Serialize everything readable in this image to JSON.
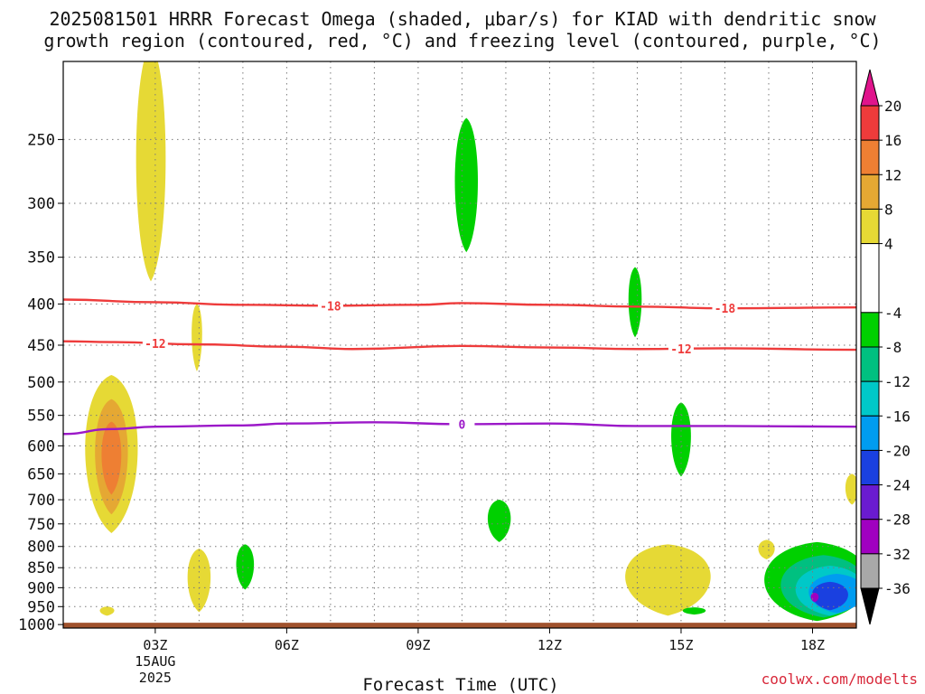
{
  "title": {
    "line1": "2025081501 HRRR Forecast Omega (shaded, μbar/s) for KIAD with dendritic snow",
    "line2": "growth region (contoured, red, °C) and freezing level (contoured, purple, °C)"
  },
  "watermark": "coolwx.com/modelts",
  "chart_data": {
    "type": "contour",
    "title": "2025081501 HRRR Forecast Omega (shaded, μbar/s) for KIAD with dendritic snow growth region (contoured, red, °C) and freezing level (contoured, purple, °C)",
    "xlabel": "Forecast Time (UTC)",
    "ylabel": "",
    "xlim_hours": [
      0.9,
      19.0
    ],
    "ylim_hpa": [
      1010,
      200
    ],
    "x_ticks": [
      {
        "hour": 3,
        "label": "03Z",
        "sub1": "15AUG",
        "sub2": "2025"
      },
      {
        "hour": 6,
        "label": "06Z"
      },
      {
        "hour": 9,
        "label": "09Z"
      },
      {
        "hour": 12,
        "label": "12Z"
      },
      {
        "hour": 15,
        "label": "15Z"
      },
      {
        "hour": 18,
        "label": "18Z"
      }
    ],
    "y_ticks": [
      250,
      300,
      350,
      400,
      450,
      500,
      550,
      600,
      650,
      700,
      750,
      800,
      850,
      900,
      950,
      1000
    ],
    "vertical_grid_hours": [
      3,
      4,
      5,
      6,
      7,
      8,
      9,
      10,
      11,
      12,
      13,
      14,
      15,
      16,
      17,
      18
    ],
    "grid": true,
    "ground_level_hpa": 1000,
    "ground_color": "#a0522d",
    "colorbar": {
      "levels": [
        20,
        16,
        12,
        8,
        4,
        -4,
        -8,
        -12,
        -16,
        -20,
        -24,
        -28,
        -32,
        -36
      ],
      "bins": [
        {
          "from": 20,
          "to": 16,
          "color": "#ee3b3b"
        },
        {
          "from": 16,
          "to": 12,
          "color": "#ee7f33"
        },
        {
          "from": 12,
          "to": 8,
          "color": "#e5a833"
        },
        {
          "from": 8,
          "to": 4,
          "color": "#e6d935"
        },
        {
          "from": 4,
          "to": -4,
          "color": "#ffffff"
        },
        {
          "from": -4,
          "to": -8,
          "color": "#00d000"
        },
        {
          "from": -8,
          "to": -12,
          "color": "#00c080"
        },
        {
          "from": -12,
          "to": -16,
          "color": "#00c8c8"
        },
        {
          "from": -16,
          "to": -20,
          "color": "#009cf0"
        },
        {
          "from": -20,
          "to": -24,
          "color": "#1a40e0"
        },
        {
          "from": -24,
          "to": -28,
          "color": "#6a1bd0"
        },
        {
          "from": -28,
          "to": -32,
          "color": "#a000c0"
        },
        {
          "from": -32,
          "to": -36,
          "color": "#a8a8a8"
        }
      ],
      "top_arrow_color": "#e0148c",
      "bottom_arrow_color": "#000000"
    },
    "contours": [
      {
        "name": "-18",
        "color": "#ee3b3b",
        "labels_at_hours": [
          7,
          16
        ],
        "points": [
          [
            0.9,
            395
          ],
          [
            3,
            398
          ],
          [
            5,
            401
          ],
          [
            7,
            402
          ],
          [
            9,
            401
          ],
          [
            10,
            399
          ],
          [
            12,
            401
          ],
          [
            14,
            403
          ],
          [
            16,
            405
          ],
          [
            19,
            404
          ]
        ]
      },
      {
        "name": "-12",
        "color": "#ee3b3b",
        "labels_at_hours": [
          3,
          15
        ],
        "points": [
          [
            0.9,
            445
          ],
          [
            2,
            446
          ],
          [
            4,
            449
          ],
          [
            6,
            452
          ],
          [
            7.5,
            455
          ],
          [
            10,
            451
          ],
          [
            12,
            453
          ],
          [
            14,
            455
          ],
          [
            16,
            454
          ],
          [
            19,
            456
          ]
        ]
      },
      {
        "name": "0",
        "color": "#9b18c8",
        "labels_at_hours": [
          10
        ],
        "points": [
          [
            0.9,
            580
          ],
          [
            2,
            572
          ],
          [
            3,
            568
          ],
          [
            5,
            566
          ],
          [
            6,
            563
          ],
          [
            8,
            561
          ],
          [
            10,
            564
          ],
          [
            12,
            563
          ],
          [
            14,
            567
          ],
          [
            16,
            567
          ],
          [
            19,
            568
          ]
        ]
      }
    ],
    "shaded_regions": [
      {
        "omega": "4 to 8",
        "color": "#e6d935",
        "center_hour": 2.9,
        "center_hpa": 295,
        "extent_hours": 0.45,
        "extent_hpa": [
          190,
          375
        ]
      },
      {
        "omega": "4 to 8",
        "color": "#e6d935",
        "center_hour": 3.95,
        "center_hpa": 435,
        "extent_hours": 0.16,
        "extent_hpa": [
          400,
          485
        ]
      },
      {
        "omega": "4 to 8",
        "color": "#e6d935",
        "center_hour": 2.0,
        "center_hpa": 630,
        "extent_hours": 0.8,
        "extent_hpa": [
          490,
          770
        ]
      },
      {
        "omega": "8 to 12",
        "color": "#e5a833",
        "center_hour": 2.0,
        "center_hpa": 625,
        "extent_hours": 0.5,
        "extent_hpa": [
          525,
          730
        ]
      },
      {
        "omega": "12 to 16",
        "color": "#ee7f33",
        "center_hour": 2.0,
        "center_hpa": 620,
        "extent_hours": 0.3,
        "extent_hpa": [
          560,
          690
        ]
      },
      {
        "omega": "4 to 8",
        "color": "#e6d935",
        "center_hour": 4.0,
        "center_hpa": 880,
        "extent_hours": 0.35,
        "extent_hpa": [
          805,
          965
        ]
      },
      {
        "omega": "4 to 8",
        "color": "#e6d935",
        "center_hour": 1.9,
        "center_hpa": 960,
        "extent_hours": 0.22,
        "extent_hpa": [
          950,
          975
        ]
      },
      {
        "omega": "4 to 8",
        "color": "#e6d935",
        "center_hour": 14.7,
        "center_hpa": 880,
        "extent_hours": 1.3,
        "extent_hpa": [
          795,
          975
        ]
      },
      {
        "omega": "4 to 8",
        "color": "#e6d935",
        "center_hour": 16.95,
        "center_hpa": 808,
        "extent_hours": 0.25,
        "extent_hpa": [
          785,
          830
        ]
      },
      {
        "omega": "4 to 8",
        "color": "#e6d935",
        "center_hour": 18.9,
        "center_hpa": 680,
        "extent_hours": 0.2,
        "extent_hpa": [
          650,
          710
        ]
      },
      {
        "omega": "-4 to -8",
        "color": "#00d000",
        "center_hour": 10.1,
        "center_hpa": 295,
        "extent_hours": 0.35,
        "extent_hpa": [
          235,
          345
        ]
      },
      {
        "omega": "-4 to -8",
        "color": "#00d000",
        "center_hour": 13.95,
        "center_hpa": 400,
        "extent_hours": 0.2,
        "extent_hpa": [
          360,
          440
        ]
      },
      {
        "omega": "-4 to -8",
        "color": "#00d000",
        "center_hour": 15.0,
        "center_hpa": 590,
        "extent_hours": 0.3,
        "extent_hpa": [
          530,
          655
        ]
      },
      {
        "omega": "-4 to -8",
        "color": "#00d000",
        "center_hour": 10.85,
        "center_hpa": 740,
        "extent_hours": 0.35,
        "extent_hpa": [
          700,
          790
        ]
      },
      {
        "omega": "-4 to -8",
        "color": "#00d000",
        "center_hour": 5.05,
        "center_hpa": 845,
        "extent_hours": 0.27,
        "extent_hpa": [
          795,
          905
        ]
      },
      {
        "omega": "-4 to -8",
        "color": "#00d000",
        "center_hour": 15.3,
        "center_hpa": 962,
        "extent_hours": 0.35,
        "extent_hpa": [
          952,
          972
        ]
      },
      {
        "omega": "-4 to -8",
        "color": "#00d000",
        "center_hour": 18.1,
        "center_hpa": 910,
        "extent_hours": 1.6,
        "extent_hpa": [
          790,
          990
        ]
      },
      {
        "omega": "-8 to -12",
        "color": "#00c080",
        "center_hour": 18.25,
        "center_hpa": 915,
        "extent_hours": 1.3,
        "extent_hpa": [
          820,
          980
        ]
      },
      {
        "omega": "-12 to -16",
        "color": "#00c8c8",
        "center_hour": 18.4,
        "center_hpa": 918,
        "extent_hours": 1.05,
        "extent_hpa": [
          845,
          975
        ]
      },
      {
        "omega": "-16 to -20",
        "color": "#009cf0",
        "center_hour": 18.55,
        "center_hpa": 920,
        "extent_hours": 0.85,
        "extent_hpa": [
          865,
          968
        ]
      },
      {
        "omega": "-20 to -24",
        "color": "#1a40e0",
        "center_hour": 18.4,
        "center_hpa": 922,
        "extent_hours": 0.55,
        "extent_hpa": [
          885,
          960
        ]
      },
      {
        "omega": "-28 to -32",
        "color": "#a000c0",
        "center_hour": 18.05,
        "center_hpa": 925,
        "extent_hours": 0.12,
        "extent_hpa": [
          913,
          938
        ]
      }
    ]
  }
}
